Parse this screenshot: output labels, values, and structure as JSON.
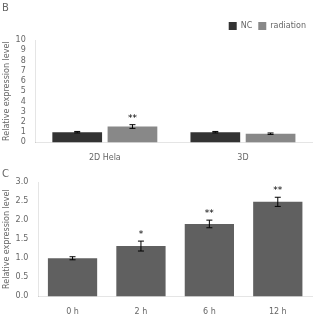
{
  "chart_data": [
    {
      "type": "bar",
      "title": "B",
      "ylabel": "Relative expression level",
      "categories": [
        "2D Hela",
        "3D"
      ],
      "series": [
        {
          "name": "NC",
          "color": "#333333",
          "values": [
            1.0,
            1.0
          ],
          "errors": [
            0.07,
            0.07
          ]
        },
        {
          "name": "radiation",
          "color": "#888888",
          "values": [
            1.55,
            0.85
          ],
          "errors": [
            0.18,
            0.07
          ]
        }
      ],
      "ylim": [
        0,
        10
      ],
      "yticks": [
        0,
        1,
        2,
        3,
        4,
        5,
        6,
        7,
        8,
        9,
        10
      ],
      "grid": false,
      "legend": "upper right",
      "annotations": [
        {
          "text": "**",
          "category": "2D Hela",
          "series": "radiation"
        }
      ]
    },
    {
      "type": "bar",
      "title": "C",
      "ylabel": "Relative expression level",
      "categories": [
        "0 h",
        "2 h",
        "6 h",
        "12 h"
      ],
      "values": [
        1.0,
        1.32,
        1.9,
        2.48
      ],
      "errors": [
        0.04,
        0.13,
        0.1,
        0.12
      ],
      "color": "#606060",
      "ylim": [
        0,
        3
      ],
      "yticks": [
        {
          "value": 0,
          "label": "0.0"
        },
        0.5,
        {
          "value": 1.0,
          "label": "1.0"
        },
        {
          "value": 1.5,
          "label": "1.5"
        },
        {
          "value": 2.0,
          "label": "2.0"
        },
        2.5,
        {
          "value": 3.0,
          "label": "3.0"
        }
      ],
      "grid": false,
      "annotations": [
        {
          "text": "*",
          "category": "2 h"
        },
        {
          "text": "**",
          "category": "6 h"
        },
        {
          "text": "**",
          "category": "12 h"
        }
      ]
    }
  ]
}
